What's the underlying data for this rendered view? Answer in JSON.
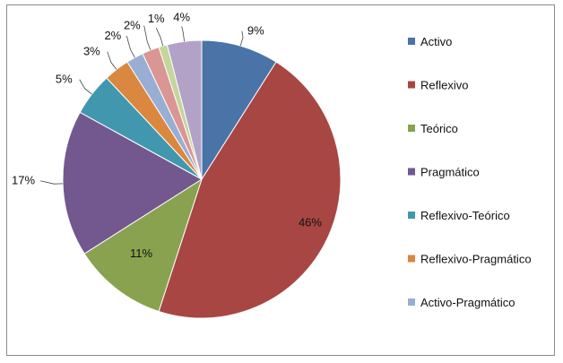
{
  "chart_data": {
    "type": "pie",
    "title": "",
    "start_angle_deg": 90,
    "direction": "clockwise",
    "legend_placement": "right",
    "categories": [
      "Activo",
      "Reflexivo",
      "Teórico",
      "Pragmático",
      "Reflexivo-Teórico",
      "Reflexivo-Pragmático",
      "Activo-Pragmático",
      "",
      "",
      ""
    ],
    "values": [
      9,
      46,
      11,
      17,
      5,
      3,
      2,
      2,
      1,
      4
    ],
    "labels": [
      "9%",
      "46%",
      "11%",
      "17%",
      "5%",
      "3%",
      "2%",
      "2%",
      "1%",
      "4%"
    ],
    "colors": [
      "#4a74a8",
      "#a84644",
      "#89a24f",
      "#72588f",
      "#4198ae",
      "#da8740",
      "#98aed3",
      "#d99694",
      "#c3d69b",
      "#b3a2c7"
    ],
    "legend": [
      {
        "label": "Activo",
        "color": "#4a74a8"
      },
      {
        "label": "Reflexivo",
        "color": "#a84644"
      },
      {
        "label": "Teórico",
        "color": "#89a24f"
      },
      {
        "label": "Pragmático",
        "color": "#72588f"
      },
      {
        "label": "Reflexivo-Teórico",
        "color": "#4198ae"
      },
      {
        "label": "Reflexivo-Pragmático",
        "color": "#da8740"
      },
      {
        "label": "Activo-Pragmático",
        "color": "#98aed3"
      }
    ]
  }
}
